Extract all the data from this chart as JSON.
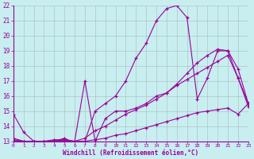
{
  "xlabel": "Windchill (Refroidissement éolien,°C)",
  "background_color": "#c8eef0",
  "grid_color": "#aabbbb",
  "line_color": "#990099",
  "xlim": [
    0,
    23
  ],
  "ylim": [
    13,
    22
  ],
  "xticks": [
    0,
    1,
    2,
    3,
    4,
    5,
    6,
    7,
    8,
    9,
    10,
    11,
    12,
    13,
    14,
    15,
    16,
    17,
    18,
    19,
    20,
    21,
    22,
    23
  ],
  "yticks": [
    13,
    14,
    15,
    16,
    17,
    18,
    19,
    20,
    21,
    22
  ],
  "line1": {
    "x": [
      0,
      1,
      2,
      3,
      4,
      5,
      6,
      7,
      8,
      9,
      10,
      11,
      12,
      13,
      14,
      15,
      16,
      17,
      18,
      19,
      20,
      21,
      22,
      23
    ],
    "y": [
      14.8,
      13.6,
      13.0,
      13.0,
      13.0,
      13.2,
      12.9,
      13.0,
      15.0,
      15.5,
      16.0,
      17.0,
      18.5,
      19.5,
      21.0,
      21.8,
      22.0,
      21.2,
      15.8,
      17.2,
      19.0,
      19.0,
      17.2,
      15.5
    ]
  },
  "line2": {
    "x": [
      0,
      1,
      2,
      3,
      4,
      5,
      6,
      7,
      8,
      9,
      10,
      11,
      12,
      13,
      14,
      15,
      16,
      17,
      18,
      19,
      20,
      21,
      22,
      23
    ],
    "y": [
      13.2,
      13.0,
      13.0,
      13.0,
      13.1,
      13.1,
      13.0,
      17.0,
      13.0,
      14.5,
      15.0,
      15.0,
      15.2,
      15.5,
      16.0,
      16.2,
      16.8,
      17.5,
      18.2,
      18.7,
      19.1,
      19.0,
      17.8,
      15.5
    ]
  },
  "line3": {
    "x": [
      0,
      1,
      2,
      3,
      4,
      5,
      6,
      7,
      8,
      9,
      10,
      11,
      12,
      13,
      14,
      15,
      16,
      17,
      18,
      19,
      20,
      21,
      22,
      23
    ],
    "y": [
      13.1,
      13.0,
      13.0,
      13.0,
      13.0,
      13.1,
      13.0,
      13.2,
      13.7,
      14.0,
      14.4,
      14.8,
      15.1,
      15.4,
      15.8,
      16.2,
      16.7,
      17.1,
      17.5,
      17.9,
      18.3,
      18.7,
      17.2,
      15.3
    ]
  },
  "line4": {
    "x": [
      0,
      1,
      2,
      3,
      4,
      5,
      6,
      7,
      8,
      9,
      10,
      11,
      12,
      13,
      14,
      15,
      16,
      17,
      18,
      19,
      20,
      21,
      22,
      23
    ],
    "y": [
      13.0,
      13.0,
      13.0,
      13.0,
      13.0,
      13.0,
      13.0,
      13.0,
      13.1,
      13.2,
      13.4,
      13.5,
      13.7,
      13.9,
      14.1,
      14.3,
      14.5,
      14.7,
      14.9,
      15.0,
      15.1,
      15.2,
      14.8,
      15.5
    ]
  }
}
